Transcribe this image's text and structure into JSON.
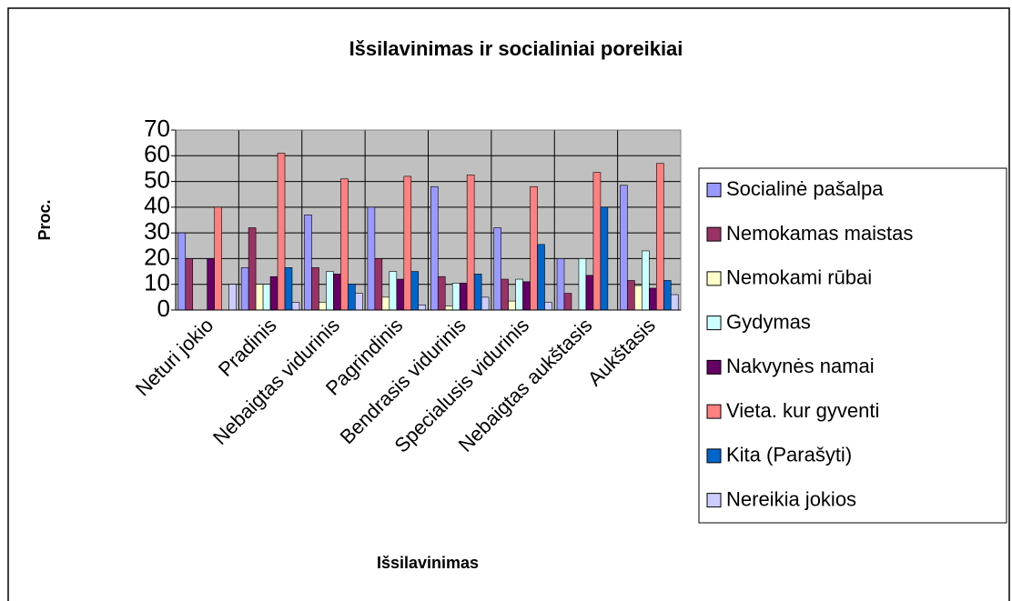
{
  "chart_data": {
    "type": "bar",
    "title": "Išsilavinimas ir socialiniai poreikiai",
    "x_label": "Išsilavinimas",
    "y_label": "Proc.",
    "categories": [
      "Neturi jokio",
      "Pradinis",
      "Nebaigtas vidurinis",
      "Pagrindinis",
      "Bendrasis vidurinis",
      "Specialusis vidurinis",
      "Nebaigtas aukštasis",
      "Aukštasis"
    ],
    "series": [
      {
        "name": "Socialinė pašalpa",
        "color": "#9999ff",
        "values": [
          30,
          16.5,
          37,
          40,
          48,
          32,
          20,
          48.5
        ]
      },
      {
        "name": "Nemokamas maistas",
        "color": "#993366",
        "values": [
          20,
          32,
          16.5,
          20,
          13,
          12,
          6.5,
          11.5
        ]
      },
      {
        "name": "Nemokami rūbai",
        "color": "#ffffcc",
        "values": [
          0,
          10,
          3,
          5,
          1.5,
          3.5,
          0,
          9.5
        ]
      },
      {
        "name": "Gydymas",
        "color": "#ccffff",
        "values": [
          0,
          10,
          15,
          15,
          10.5,
          12,
          20,
          23
        ]
      },
      {
        "name": "Nakvynės namai",
        "color": "#660066",
        "values": [
          20,
          13,
          14,
          12,
          10.5,
          11,
          13.5,
          8.5
        ]
      },
      {
        "name": "Vieta. kur gyventi",
        "color": "#ff8080",
        "values": [
          40,
          61,
          51,
          52,
          52.5,
          48,
          53.5,
          57
        ]
      },
      {
        "name": "Kita (Parašyti)",
        "color": "#0066cc",
        "values": [
          0,
          16.5,
          10,
          15,
          14,
          25.5,
          40,
          11.5
        ]
      },
      {
        "name": "Nereikia jokios",
        "color": "#ccccff",
        "values": [
          10,
          3,
          6.5,
          2,
          5,
          3,
          0,
          6
        ]
      }
    ],
    "ylim": [
      0,
      70
    ],
    "yticks": [
      0,
      10,
      20,
      30,
      40,
      50,
      60,
      70
    ],
    "grid": true,
    "legend": "right"
  }
}
